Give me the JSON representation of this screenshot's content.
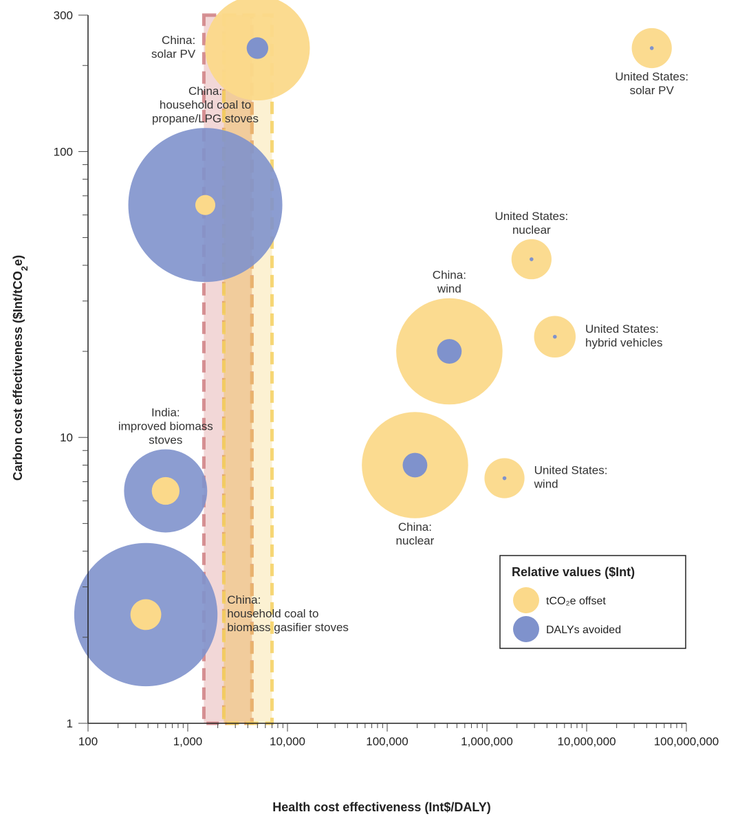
{
  "chart_data": {
    "type": "scatter",
    "subtype": "bubble",
    "xlabel": "Health cost effectiveness (Int$/DALY)",
    "ylabel": "Carbon cost effectiveness ($Int/tCO₂e)",
    "x_scale": "log",
    "y_scale": "log",
    "xlim": [
      100,
      100000000
    ],
    "ylim": [
      1,
      300
    ],
    "x_tick_labels": [
      {
        "value": 100,
        "label": "100"
      },
      {
        "value": 1000,
        "label": "1,000"
      },
      {
        "value": 10000,
        "label": "10,000"
      },
      {
        "value": 100000,
        "label": "100,000"
      },
      {
        "value": 1000000,
        "label": "1,000,000"
      },
      {
        "value": 10000000,
        "label": "10,000,000"
      },
      {
        "value": 100000000,
        "label": "100,000,000"
      }
    ],
    "y_tick_labels": [
      {
        "value": 1,
        "label": "1"
      },
      {
        "value": 10,
        "label": "10"
      },
      {
        "value": 100,
        "label": "100"
      },
      {
        "value": 300,
        "label": "300"
      }
    ],
    "colors": {
      "tco2e": "#fbd98a",
      "daly": "#7f92cc",
      "band_red": "#d98c8c",
      "band_orange": "#eba65c",
      "band_yellow": "#f7d77e"
    },
    "legend": {
      "title": "Relative values ($Int)",
      "items": [
        {
          "key": "tco2e",
          "label": "tCO₂e offset"
        },
        {
          "key": "daly",
          "label": "DALYs avoided"
        }
      ],
      "position": "bottom-right"
    },
    "bands": [
      {
        "name": "red",
        "x_range": [
          1450,
          4400
        ],
        "style": "dashed"
      },
      {
        "name": "orange",
        "x_range": [
          2300,
          4400
        ],
        "style": "dashed"
      },
      {
        "name": "yellow",
        "x_range": [
          2300,
          7000
        ],
        "style": "dashed"
      }
    ],
    "bubbles": [
      {
        "label": [
          "China:",
          "household coal to",
          "propane/LPG stoves"
        ],
        "x": 1500,
        "y": 65,
        "outer": "daly",
        "outer_size": 1.0,
        "inner": "tco2e",
        "inner_size": 0.13,
        "label_anchor": "above"
      },
      {
        "label": [
          "China:",
          "solar PV"
        ],
        "x": 5000,
        "y": 230,
        "outer": "tco2e",
        "outer_size": 0.68,
        "inner": "daly",
        "inner_size": 0.14,
        "label_anchor": "left"
      },
      {
        "label": [
          "United States:",
          "solar PV"
        ],
        "x": 45000000,
        "y": 230,
        "outer": "tco2e",
        "outer_size": 0.26,
        "inner": "daly",
        "inner_size": 0.025,
        "label_anchor": "below"
      },
      {
        "label": [
          "United States:",
          "nuclear"
        ],
        "x": 2800000,
        "y": 42,
        "outer": "tco2e",
        "outer_size": 0.26,
        "inner": "daly",
        "inner_size": 0.025,
        "label_anchor": "above"
      },
      {
        "label": [
          "China:",
          "wind"
        ],
        "x": 420000,
        "y": 20,
        "outer": "tco2e",
        "outer_size": 0.69,
        "inner": "daly",
        "inner_size": 0.16,
        "label_anchor": "above"
      },
      {
        "label": [
          "United States:",
          "hybrid vehicles"
        ],
        "x": 4800000,
        "y": 22.5,
        "outer": "tco2e",
        "outer_size": 0.27,
        "inner": "daly",
        "inner_size": 0.025,
        "label_anchor": "right"
      },
      {
        "label": [
          "China:",
          "nuclear"
        ],
        "x": 190000,
        "y": 8,
        "outer": "tco2e",
        "outer_size": 0.69,
        "inner": "daly",
        "inner_size": 0.16,
        "label_anchor": "below"
      },
      {
        "label": [
          "United States:",
          "wind"
        ],
        "x": 1500000,
        "y": 7.2,
        "outer": "tco2e",
        "outer_size": 0.26,
        "inner": "daly",
        "inner_size": 0.025,
        "label_anchor": "right"
      },
      {
        "label": [
          "India:",
          "improved biomass",
          "stoves"
        ],
        "x": 600,
        "y": 6.5,
        "outer": "daly",
        "outer_size": 0.54,
        "inner": "tco2e",
        "inner_size": 0.18,
        "label_anchor": "above"
      },
      {
        "label": [
          "China:",
          "household coal to",
          "biomass gasifier stoves"
        ],
        "x": 380,
        "y": 2.4,
        "outer": "daly",
        "outer_size": 0.93,
        "inner": "tco2e",
        "inner_size": 0.2,
        "label_anchor": "right"
      }
    ]
  }
}
